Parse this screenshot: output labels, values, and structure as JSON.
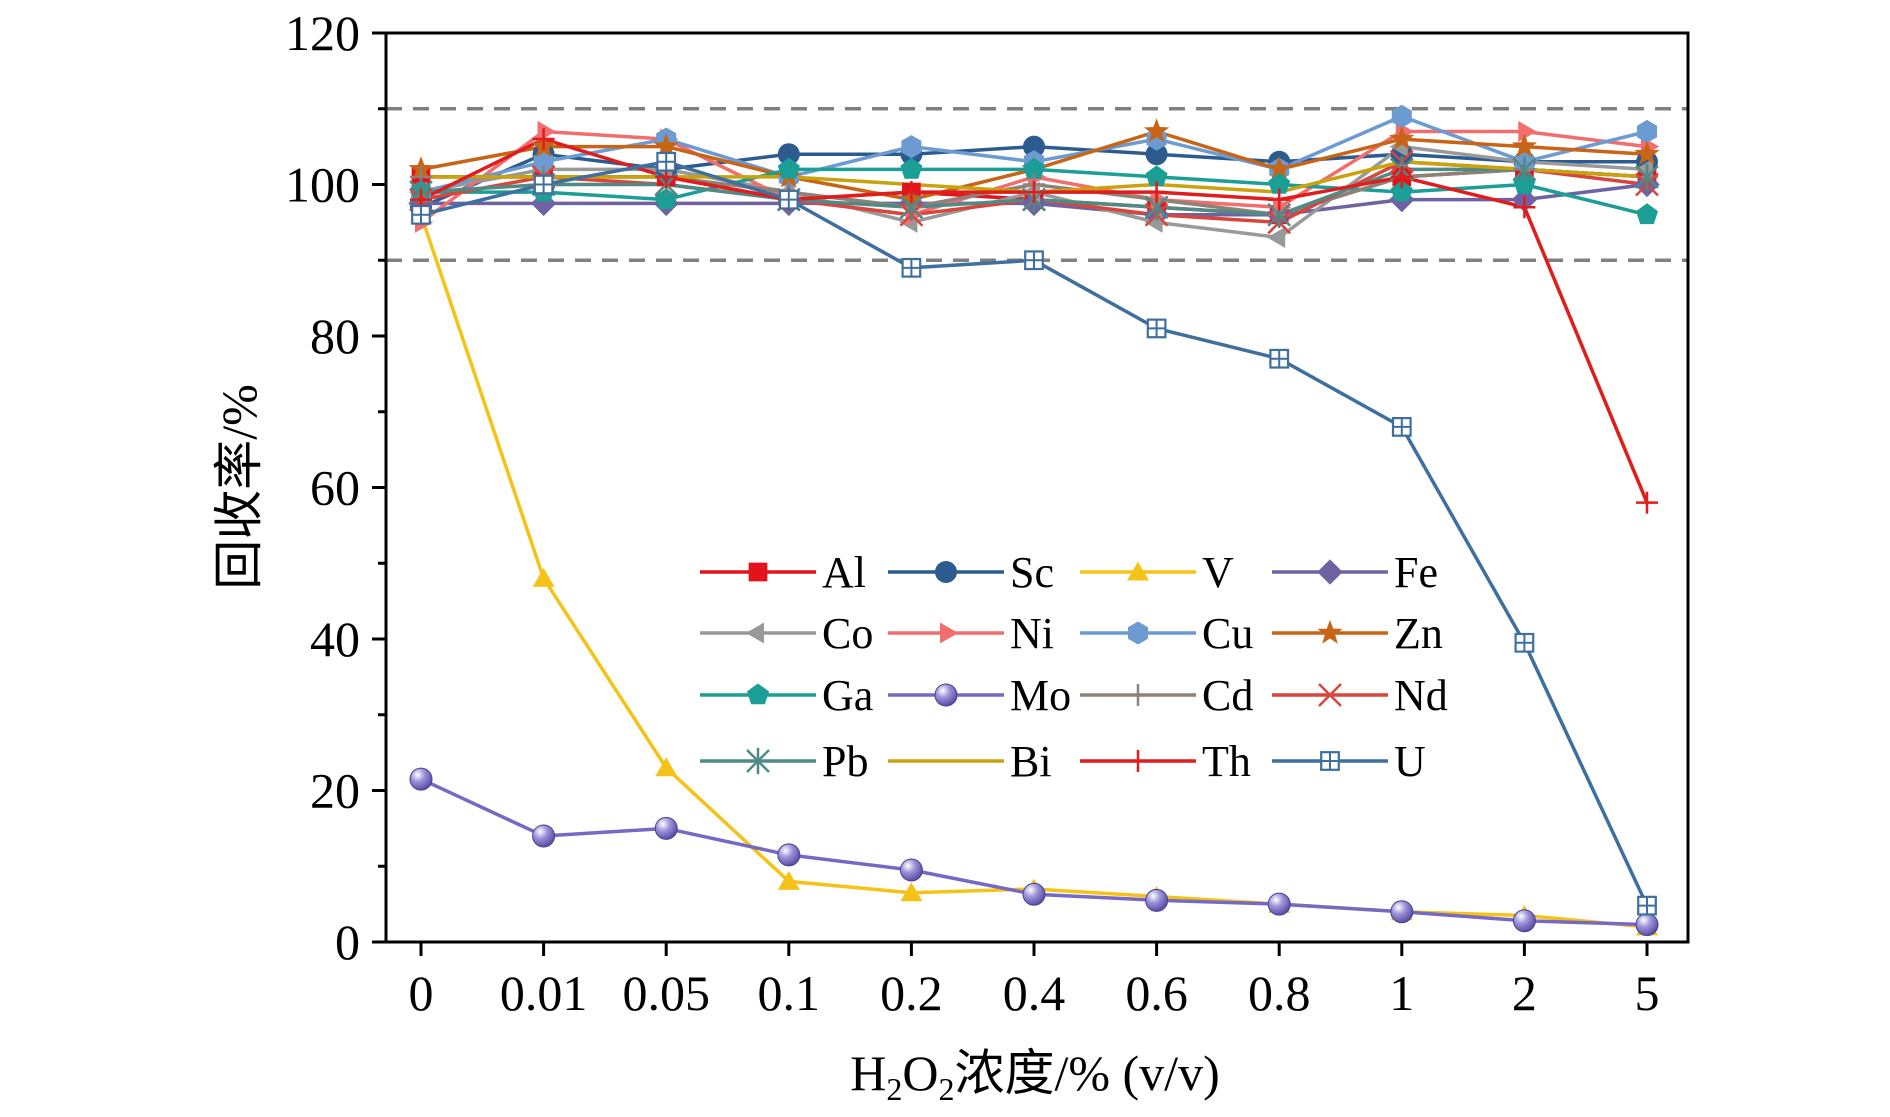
{
  "chart_data": {
    "type": "line",
    "xlabel": {
      "prefix": "H",
      "sub1": "2",
      "mid": "O",
      "sub2": "2",
      "suffix": "浓度/% (v/v)"
    },
    "ylabel": "回收率/%",
    "categories": [
      "0",
      "0.01",
      "0.05",
      "0.1",
      "0.2",
      "0.4",
      "0.6",
      "0.8",
      "1",
      "2",
      "5"
    ],
    "yticks": [
      "0",
      "20",
      "40",
      "60",
      "80",
      "100",
      "120"
    ],
    "ylim": [
      0,
      120
    ],
    "reference_lines": [
      90,
      110
    ],
    "grid": false,
    "legend_placement": "center",
    "series": [
      {
        "name": "Al",
        "color": "#e3121b",
        "marker": "square",
        "values": [
          101,
          101,
          101,
          98,
          99,
          98,
          97,
          96,
          101,
          102,
          101
        ]
      },
      {
        "name": "Sc",
        "color": "#2c5c8f",
        "marker": "circle",
        "values": [
          97,
          104,
          102,
          104,
          104,
          105,
          104,
          103,
          104,
          103,
          103
        ]
      },
      {
        "name": "V",
        "color": "#f5c217",
        "marker": "triangle",
        "values": [
          96,
          48,
          23,
          8,
          6.5,
          7,
          6,
          5,
          4,
          3.5,
          2
        ]
      },
      {
        "name": "Fe",
        "color": "#6e62a3",
        "marker": "diamond",
        "values": [
          97.5,
          97.5,
          97.5,
          97.5,
          97.5,
          97.5,
          96,
          96,
          98,
          98,
          100
        ]
      },
      {
        "name": "Co",
        "color": "#999999",
        "marker": "triangle-left",
        "values": [
          99,
          102,
          102,
          99,
          95,
          99,
          95,
          93,
          105,
          103,
          102
        ]
      },
      {
        "name": "Ni",
        "color": "#f26d6d",
        "marker": "triangle-right",
        "values": [
          95,
          107,
          106,
          98,
          96,
          101,
          98,
          97,
          107,
          107,
          105
        ]
      },
      {
        "name": "Cu",
        "color": "#6b9bd1",
        "marker": "hexagon",
        "values": [
          99,
          103,
          106,
          101,
          105,
          103,
          106,
          102,
          109,
          103,
          107
        ]
      },
      {
        "name": "Zn",
        "color": "#c86416",
        "marker": "star",
        "values": [
          102,
          105,
          105,
          101,
          98,
          102,
          107,
          102,
          106,
          105,
          104
        ]
      },
      {
        "name": "Ga",
        "color": "#1a9e96",
        "marker": "pentagon",
        "values": [
          99,
          99,
          98,
          102,
          102,
          102,
          101,
          100,
          99,
          100,
          96
        ]
      },
      {
        "name": "Mo",
        "color": "#7569c4",
        "marker": "sphere",
        "values": [
          21.5,
          14,
          15,
          11.5,
          9.5,
          6.3,
          5.5,
          5,
          4,
          2.8,
          2.3
        ]
      },
      {
        "name": "Cd",
        "color": "#8c8278",
        "marker": "plus",
        "values": [
          101,
          101,
          101,
          99,
          97,
          100,
          98,
          96,
          101,
          102,
          101
        ]
      },
      {
        "name": "Nd",
        "color": "#d9453c",
        "marker": "x",
        "values": [
          98,
          101,
          100,
          98,
          96,
          98,
          96,
          95,
          103,
          102,
          100
        ]
      },
      {
        "name": "Pb",
        "color": "#4f8b86",
        "marker": "asterisk",
        "values": [
          99,
          100,
          100,
          98,
          97,
          98,
          97,
          96,
          102,
          102,
          101
        ]
      },
      {
        "name": "Bi",
        "color": "#c9a20d",
        "marker": "none",
        "values": [
          101,
          101,
          101,
          101,
          100,
          99,
          100,
          99,
          103,
          102,
          101
        ]
      },
      {
        "name": "Th",
        "color": "#e01c1c",
        "marker": "plus",
        "values": [
          98,
          106,
          101,
          98,
          99,
          99,
          99,
          98,
          101,
          97,
          58
        ]
      },
      {
        "name": "U",
        "color": "#3f6f9e",
        "marker": "square-cross",
        "values": [
          96,
          100,
          103,
          98,
          89,
          90,
          81,
          77,
          68,
          39.5,
          4.8
        ]
      }
    ]
  }
}
